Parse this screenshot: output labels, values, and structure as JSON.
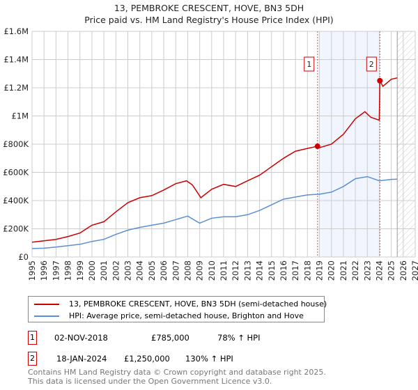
{
  "chart_data": {
    "type": "line",
    "title": "13, PEMBROKE CRESCENT, HOVE, BN3 5DH",
    "subtitle": "Price paid vs. HM Land Registry's House Price Index (HPI)",
    "xlim": [
      1995,
      2027
    ],
    "ylim": [
      0,
      1600000
    ],
    "x_ticks": [
      "1995",
      "1996",
      "1997",
      "1998",
      "1999",
      "2000",
      "2001",
      "2002",
      "2003",
      "2004",
      "2005",
      "2006",
      "2007",
      "2008",
      "2009",
      "2010",
      "2011",
      "2012",
      "2013",
      "2014",
      "2015",
      "2016",
      "2017",
      "2018",
      "2019",
      "2020",
      "2021",
      "2022",
      "2023",
      "2024",
      "2025",
      "2026",
      "2027"
    ],
    "y_ticks": [
      {
        "v": 0,
        "label": "£0"
      },
      {
        "v": 200000,
        "label": "£200K"
      },
      {
        "v": 400000,
        "label": "£400K"
      },
      {
        "v": 600000,
        "label": "£600K"
      },
      {
        "v": 800000,
        "label": "£800K"
      },
      {
        "v": 1000000,
        "label": "£1M"
      },
      {
        "v": 1200000,
        "label": "£1.2M"
      },
      {
        "v": 1400000,
        "label": "£1.4M"
      },
      {
        "v": 1600000,
        "label": "£1.6M"
      }
    ],
    "grid": true,
    "forecast_hatch_from": 2025.5,
    "shaded_range": [
      2018.84,
      2024.05
    ],
    "series": [
      {
        "name": "13, PEMBROKE CRESCENT, HOVE, BN3 5DH (semi-detached house)",
        "color": "#cc0000",
        "x": [
          1995,
          1996,
          1997,
          1998,
          1999,
          2000,
          2001,
          2002,
          2003,
          2004,
          2005,
          2006,
          2007,
          2007.9,
          2008.4,
          2009.1,
          2010,
          2011,
          2012,
          2013,
          2014,
          2015,
          2016,
          2017,
          2018,
          2018.84,
          2019,
          2020,
          2021,
          2022,
          2022.8,
          2023.3,
          2024.0,
          2024.05,
          2024.3,
          2025,
          2025.5
        ],
        "y": [
          105000,
          115000,
          125000,
          145000,
          170000,
          225000,
          250000,
          320000,
          385000,
          420000,
          435000,
          475000,
          520000,
          540000,
          510000,
          420000,
          480000,
          515000,
          500000,
          540000,
          580000,
          640000,
          700000,
          750000,
          770000,
          785000,
          775000,
          800000,
          870000,
          980000,
          1030000,
          990000,
          970000,
          1250000,
          1210000,
          1260000,
          1270000
        ]
      },
      {
        "name": "HPI: Average price, semi-detached house, Brighton and Hove",
        "color": "#5b8fd4",
        "x": [
          1995,
          1996,
          1997,
          1998,
          1999,
          2000,
          2001,
          2002,
          2003,
          2004,
          2005,
          2006,
          2007,
          2008,
          2009,
          2010,
          2011,
          2012,
          2013,
          2014,
          2015,
          2016,
          2017,
          2018,
          2019,
          2020,
          2021,
          2022,
          2023,
          2024,
          2025,
          2025.5
        ],
        "y": [
          60000,
          62000,
          70000,
          80000,
          90000,
          110000,
          125000,
          160000,
          190000,
          210000,
          225000,
          240000,
          265000,
          290000,
          240000,
          275000,
          285000,
          285000,
          300000,
          330000,
          370000,
          410000,
          425000,
          440000,
          445000,
          460000,
          500000,
          555000,
          570000,
          540000,
          550000,
          552000
        ]
      }
    ],
    "annotations": [
      {
        "label": "1",
        "x": 2018.84,
        "y": 785000
      },
      {
        "label": "2",
        "x": 2024.05,
        "y": 1250000
      }
    ]
  },
  "legend": {
    "property": "13, PEMBROKE CRESCENT, HOVE, BN3 5DH (semi-detached house)",
    "hpi": "HPI: Average price, semi-detached house, Brighton and Hove"
  },
  "transactions": [
    {
      "num": "1",
      "date": "02-NOV-2018",
      "price": "£785,000",
      "hpi": "78% ↑ HPI"
    },
    {
      "num": "2",
      "date": "18-JAN-2024",
      "price": "£1,250,000",
      "hpi": "130% ↑ HPI"
    }
  ],
  "footer": {
    "line1": "Contains HM Land Registry data © Crown copyright and database right 2025.",
    "line2": "This data is licensed under the Open Government Licence v3.0."
  }
}
